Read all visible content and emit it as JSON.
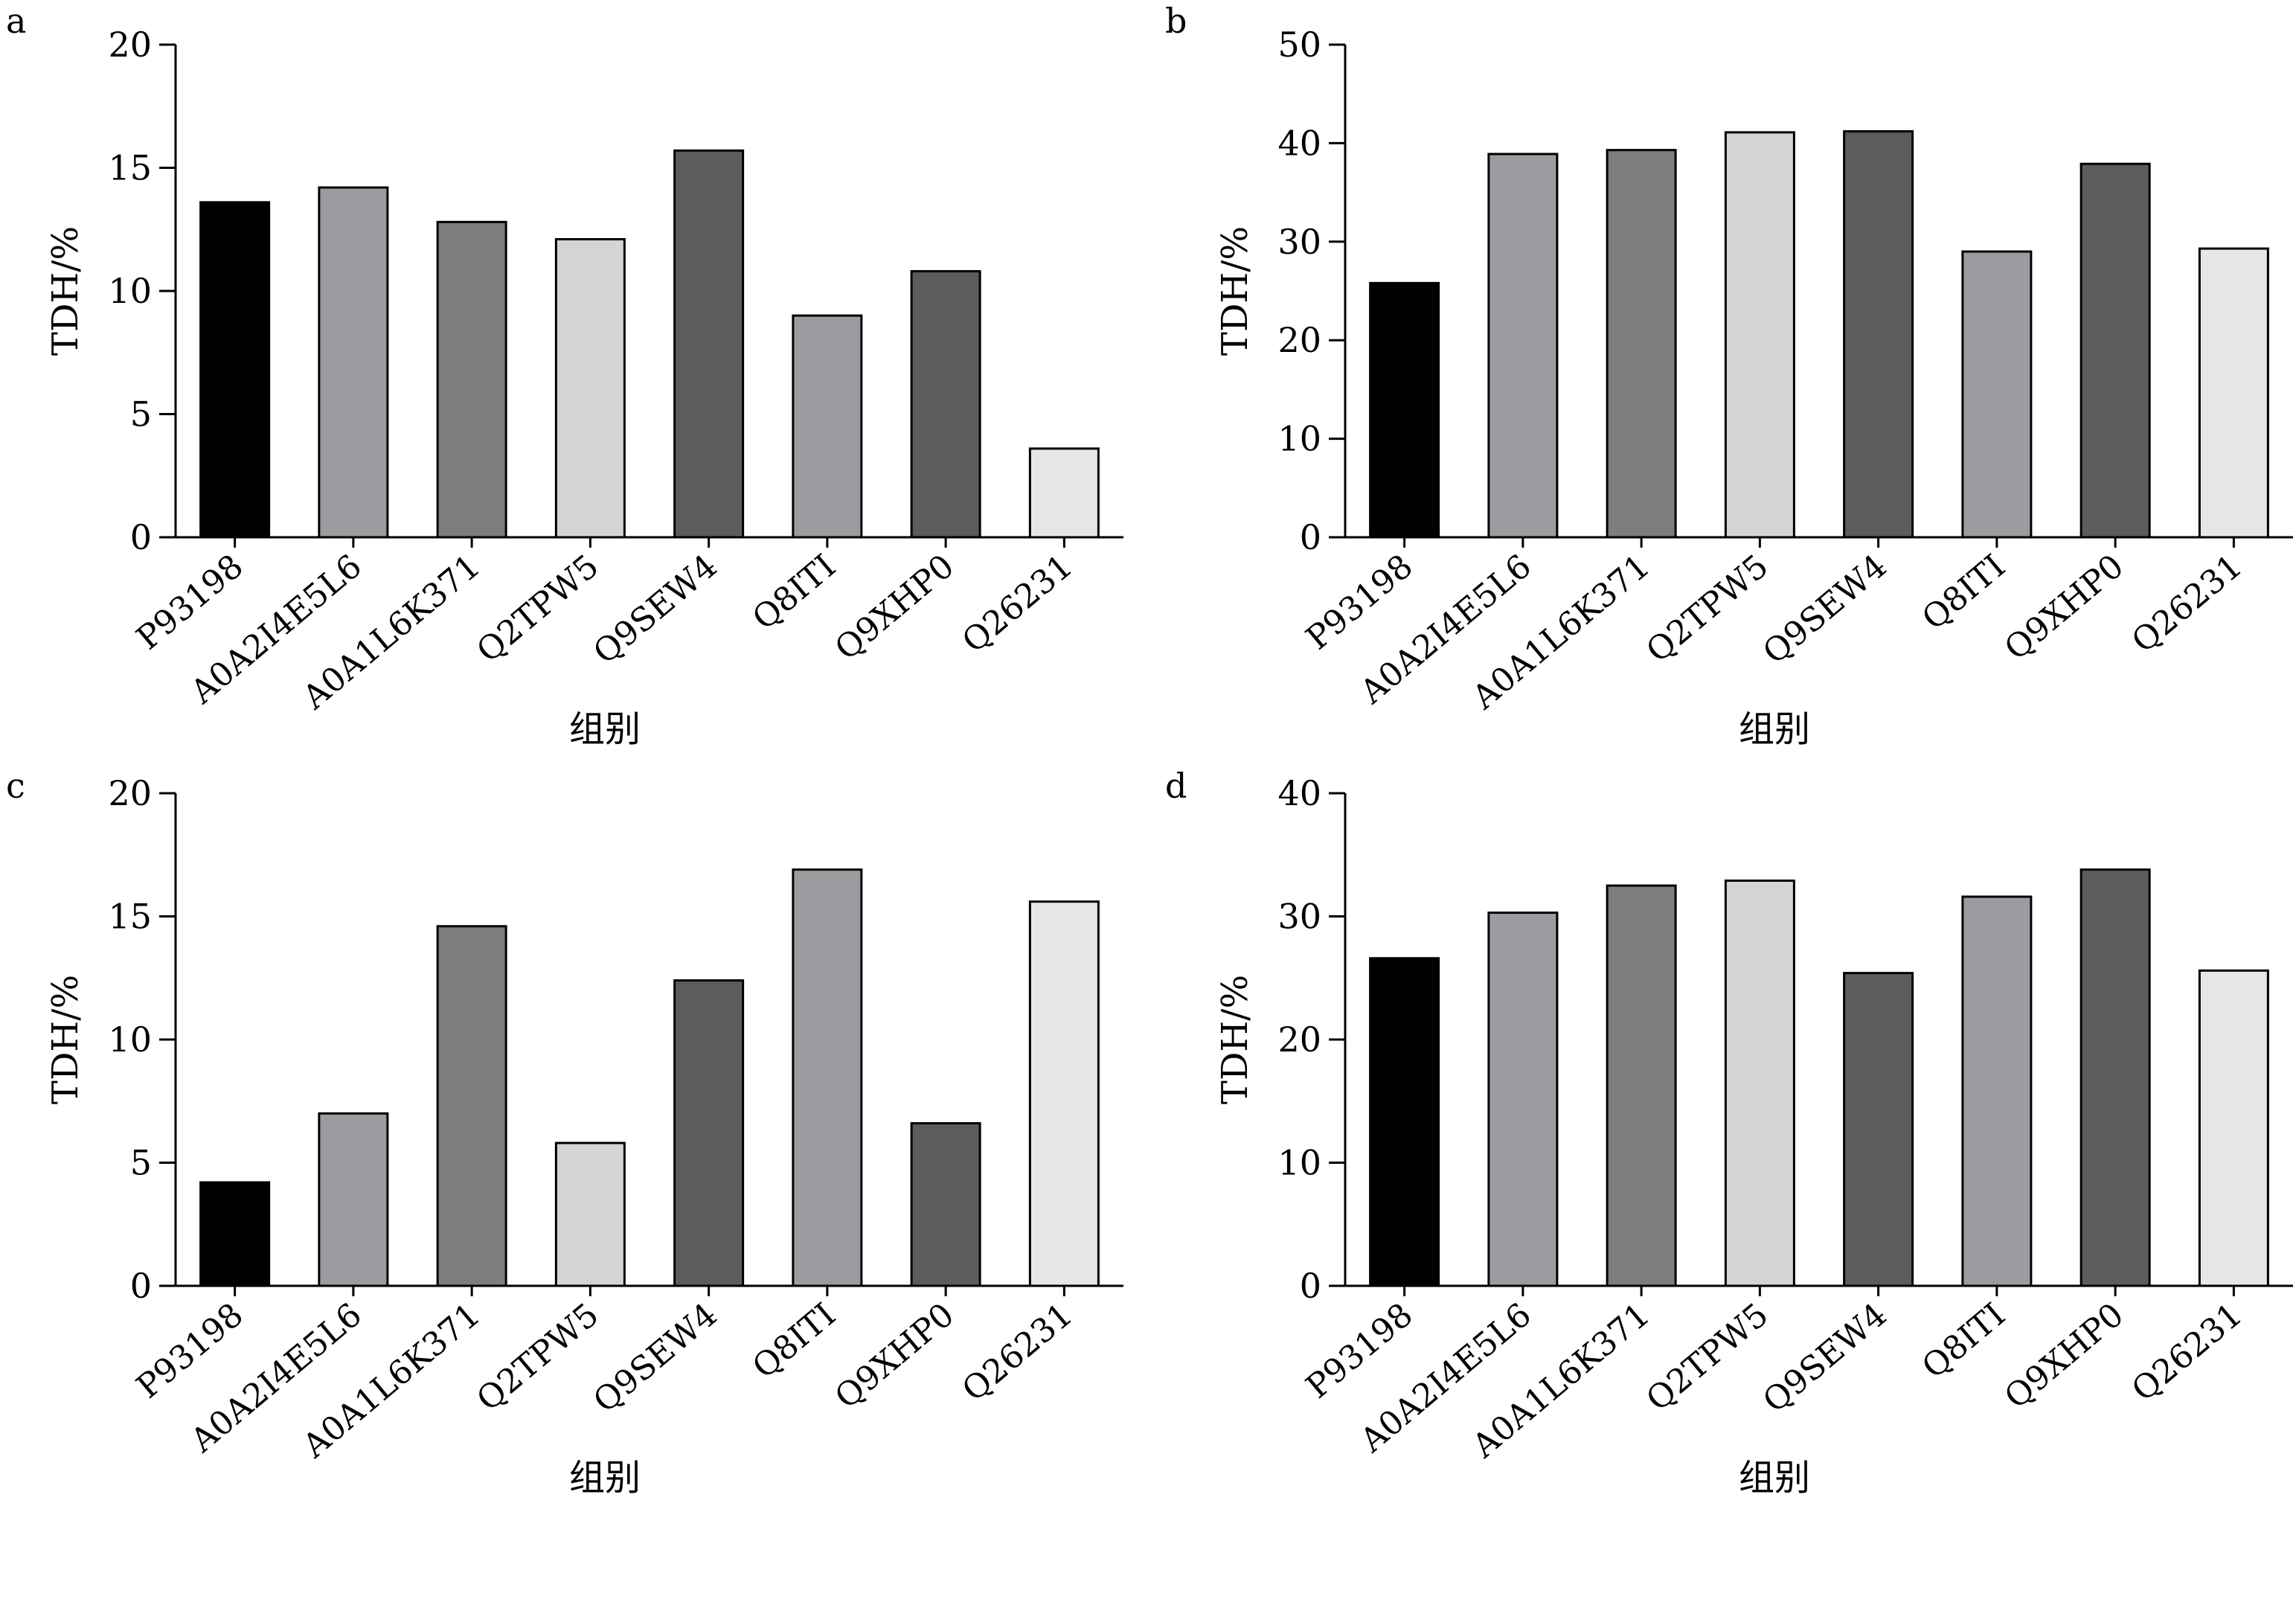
{
  "chart_data": [
    {
      "panel": "a",
      "type": "bar",
      "categories": [
        "P93198",
        "A0A2I4E5L6",
        "A0A1L6K371",
        "Q2TPW5",
        "Q9SEW4",
        "Q8ITI",
        "Q9XHP0",
        "Q26231"
      ],
      "values": [
        13.6,
        14.2,
        12.8,
        12.1,
        15.7,
        9.0,
        10.8,
        3.6
      ],
      "ylabel": "TDH/%",
      "xlabel": "组别",
      "ylim": [
        0,
        20
      ],
      "yticks": [
        0,
        5,
        10,
        15,
        20
      ],
      "colors": [
        "#000000",
        "#9c9ca0",
        "#7d7d7d",
        "#d4d4d4",
        "#5c5c5c",
        "#9c9ca0",
        "#5c5c5c",
        "#e6e6e6"
      ]
    },
    {
      "panel": "b",
      "type": "bar",
      "categories": [
        "P93198",
        "A0A2I4E5L6",
        "A0A1L6K371",
        "Q2TPW5",
        "Q9SEW4",
        "Q8ITI",
        "Q9XHP0",
        "Q26231"
      ],
      "values": [
        25.8,
        38.9,
        39.3,
        41.1,
        41.2,
        29.0,
        37.9,
        29.3
      ],
      "ylabel": "TDH/%",
      "xlabel": "组别",
      "ylim": [
        0,
        50
      ],
      "yticks": [
        0,
        10,
        20,
        30,
        40,
        50
      ],
      "colors": [
        "#000000",
        "#9c9ca0",
        "#7d7d7d",
        "#d4d4d4",
        "#5c5c5c",
        "#9c9ca0",
        "#5c5c5c",
        "#e6e6e6"
      ]
    },
    {
      "panel": "c",
      "type": "bar",
      "categories": [
        "P93198",
        "A0A2I4E5L6",
        "A0A1L6K371",
        "Q2TPW5",
        "Q9SEW4",
        "Q8ITI",
        "Q9XHP0",
        "Q26231"
      ],
      "values": [
        4.2,
        7.0,
        14.6,
        5.8,
        12.4,
        16.9,
        6.6,
        15.6
      ],
      "ylabel": "TDH/%",
      "xlabel": "组别",
      "ylim": [
        0,
        20
      ],
      "yticks": [
        0,
        5,
        10,
        15,
        20
      ],
      "colors": [
        "#000000",
        "#9c9ca0",
        "#7d7d7d",
        "#d4d4d4",
        "#5c5c5c",
        "#9c9ca0",
        "#5c5c5c",
        "#e6e6e6"
      ]
    },
    {
      "panel": "d",
      "type": "bar",
      "categories": [
        "P93198",
        "A0A2I4E5L6",
        "A0A1L6K371",
        "Q2TPW5",
        "Q9SEW4",
        "Q8ITI",
        "Q9XHP0",
        "Q26231"
      ],
      "values": [
        26.6,
        30.3,
        32.5,
        32.9,
        25.4,
        31.6,
        33.8,
        25.6
      ],
      "ylabel": "TDH/%",
      "xlabel": "组别",
      "ylim": [
        0,
        40
      ],
      "yticks": [
        0,
        10,
        20,
        30,
        40
      ],
      "colors": [
        "#000000",
        "#9c9ca0",
        "#7d7d7d",
        "#d4d4d4",
        "#5c5c5c",
        "#9c9ca0",
        "#5c5c5c",
        "#e6e6e6"
      ]
    }
  ]
}
